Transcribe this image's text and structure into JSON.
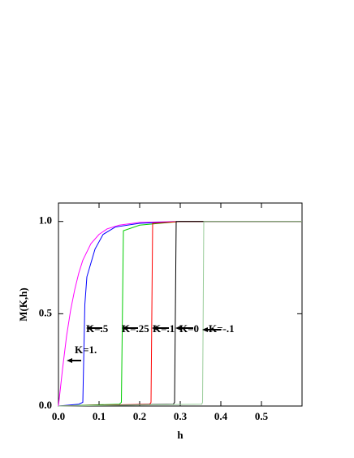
{
  "chart_data": {
    "type": "line",
    "xlabel": "h",
    "ylabel": "M(K,h)",
    "xlim": [
      0,
      0.6
    ],
    "ylim": [
      0,
      1.1
    ],
    "xticks": [
      {
        "value": 0,
        "label": "0.0"
      },
      {
        "value": 0.1,
        "label": "0.1"
      },
      {
        "value": 0.2,
        "label": "0.2"
      },
      {
        "value": 0.3,
        "label": "0.3"
      },
      {
        "value": 0.4,
        "label": "0.4"
      },
      {
        "value": 0.5,
        "label": "0.5"
      }
    ],
    "yticks": [
      {
        "value": 0,
        "label": "0.0"
      },
      {
        "value": 0.5,
        "label": "0.5"
      },
      {
        "value": 1,
        "label": "1.0"
      }
    ],
    "grid": false,
    "series": [
      {
        "name": "K=1.",
        "color": "#ff00ff",
        "x": [
          0,
          0.01,
          0.02,
          0.03,
          0.04,
          0.05,
          0.06,
          0.08,
          0.1,
          0.12,
          0.15,
          0.2,
          0.3,
          0.6
        ],
        "values": [
          0,
          0.2,
          0.38,
          0.52,
          0.63,
          0.72,
          0.79,
          0.88,
          0.93,
          0.96,
          0.98,
          0.995,
          1,
          1
        ]
      },
      {
        "name": "K=.5",
        "color": "#0000ff",
        "x": [
          0,
          0.05,
          0.06,
          0.065,
          0.07,
          0.09,
          0.11,
          0.14,
          0.2,
          0.3,
          0.6
        ],
        "values": [
          0,
          0.01,
          0.02,
          0.55,
          0.7,
          0.85,
          0.93,
          0.97,
          0.99,
          1,
          1
        ]
      },
      {
        "name": "K=.25",
        "color": "#00cc00",
        "x": [
          0,
          0.15,
          0.155,
          0.16,
          0.2,
          0.3,
          0.6
        ],
        "values": [
          0,
          0.01,
          0.02,
          0.95,
          0.98,
          1,
          1
        ]
      },
      {
        "name": "K=.1",
        "color": "#ff0000",
        "x": [
          0,
          0.225,
          0.228,
          0.232,
          0.3,
          0.6
        ],
        "values": [
          0,
          0.01,
          0.02,
          0.99,
          1,
          1
        ]
      },
      {
        "name": "K=0",
        "color": "#000000",
        "x": [
          0,
          0.283,
          0.286,
          0.29,
          0.6
        ],
        "values": [
          0,
          0.01,
          0.02,
          1,
          1
        ]
      },
      {
        "name": "K=-.1",
        "color": "#99cc99",
        "x": [
          0,
          0.353,
          0.355,
          0.358,
          0.6
        ],
        "values": [
          0,
          0.01,
          0.02,
          1,
          1
        ]
      }
    ]
  }
}
